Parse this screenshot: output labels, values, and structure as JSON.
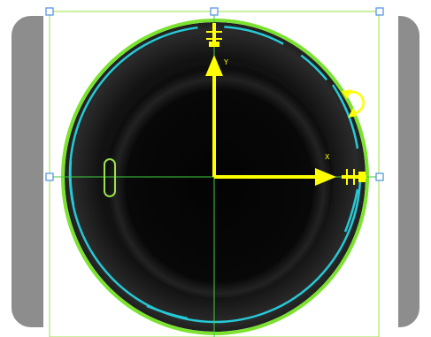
{
  "viewport": {
    "colors": {
      "background": "#ffffff",
      "side_panel": "#8d8d8d",
      "selection_frame": "#9be24a",
      "handle": "#4a90e2",
      "crosshair": "#3ecf3e",
      "outer_ring": "#7be22f",
      "inner_ring": "#27c9d6",
      "axis": "#ffff00",
      "image_dark": "#0b0b0b"
    },
    "axes": {
      "x_label": "X",
      "y_label": "Y"
    },
    "icons": {
      "rotate": "rotate-icon",
      "x_handle": "x-handle-icon",
      "y_handle": "y-handle-icon",
      "slot": "slot-feature-icon"
    }
  }
}
